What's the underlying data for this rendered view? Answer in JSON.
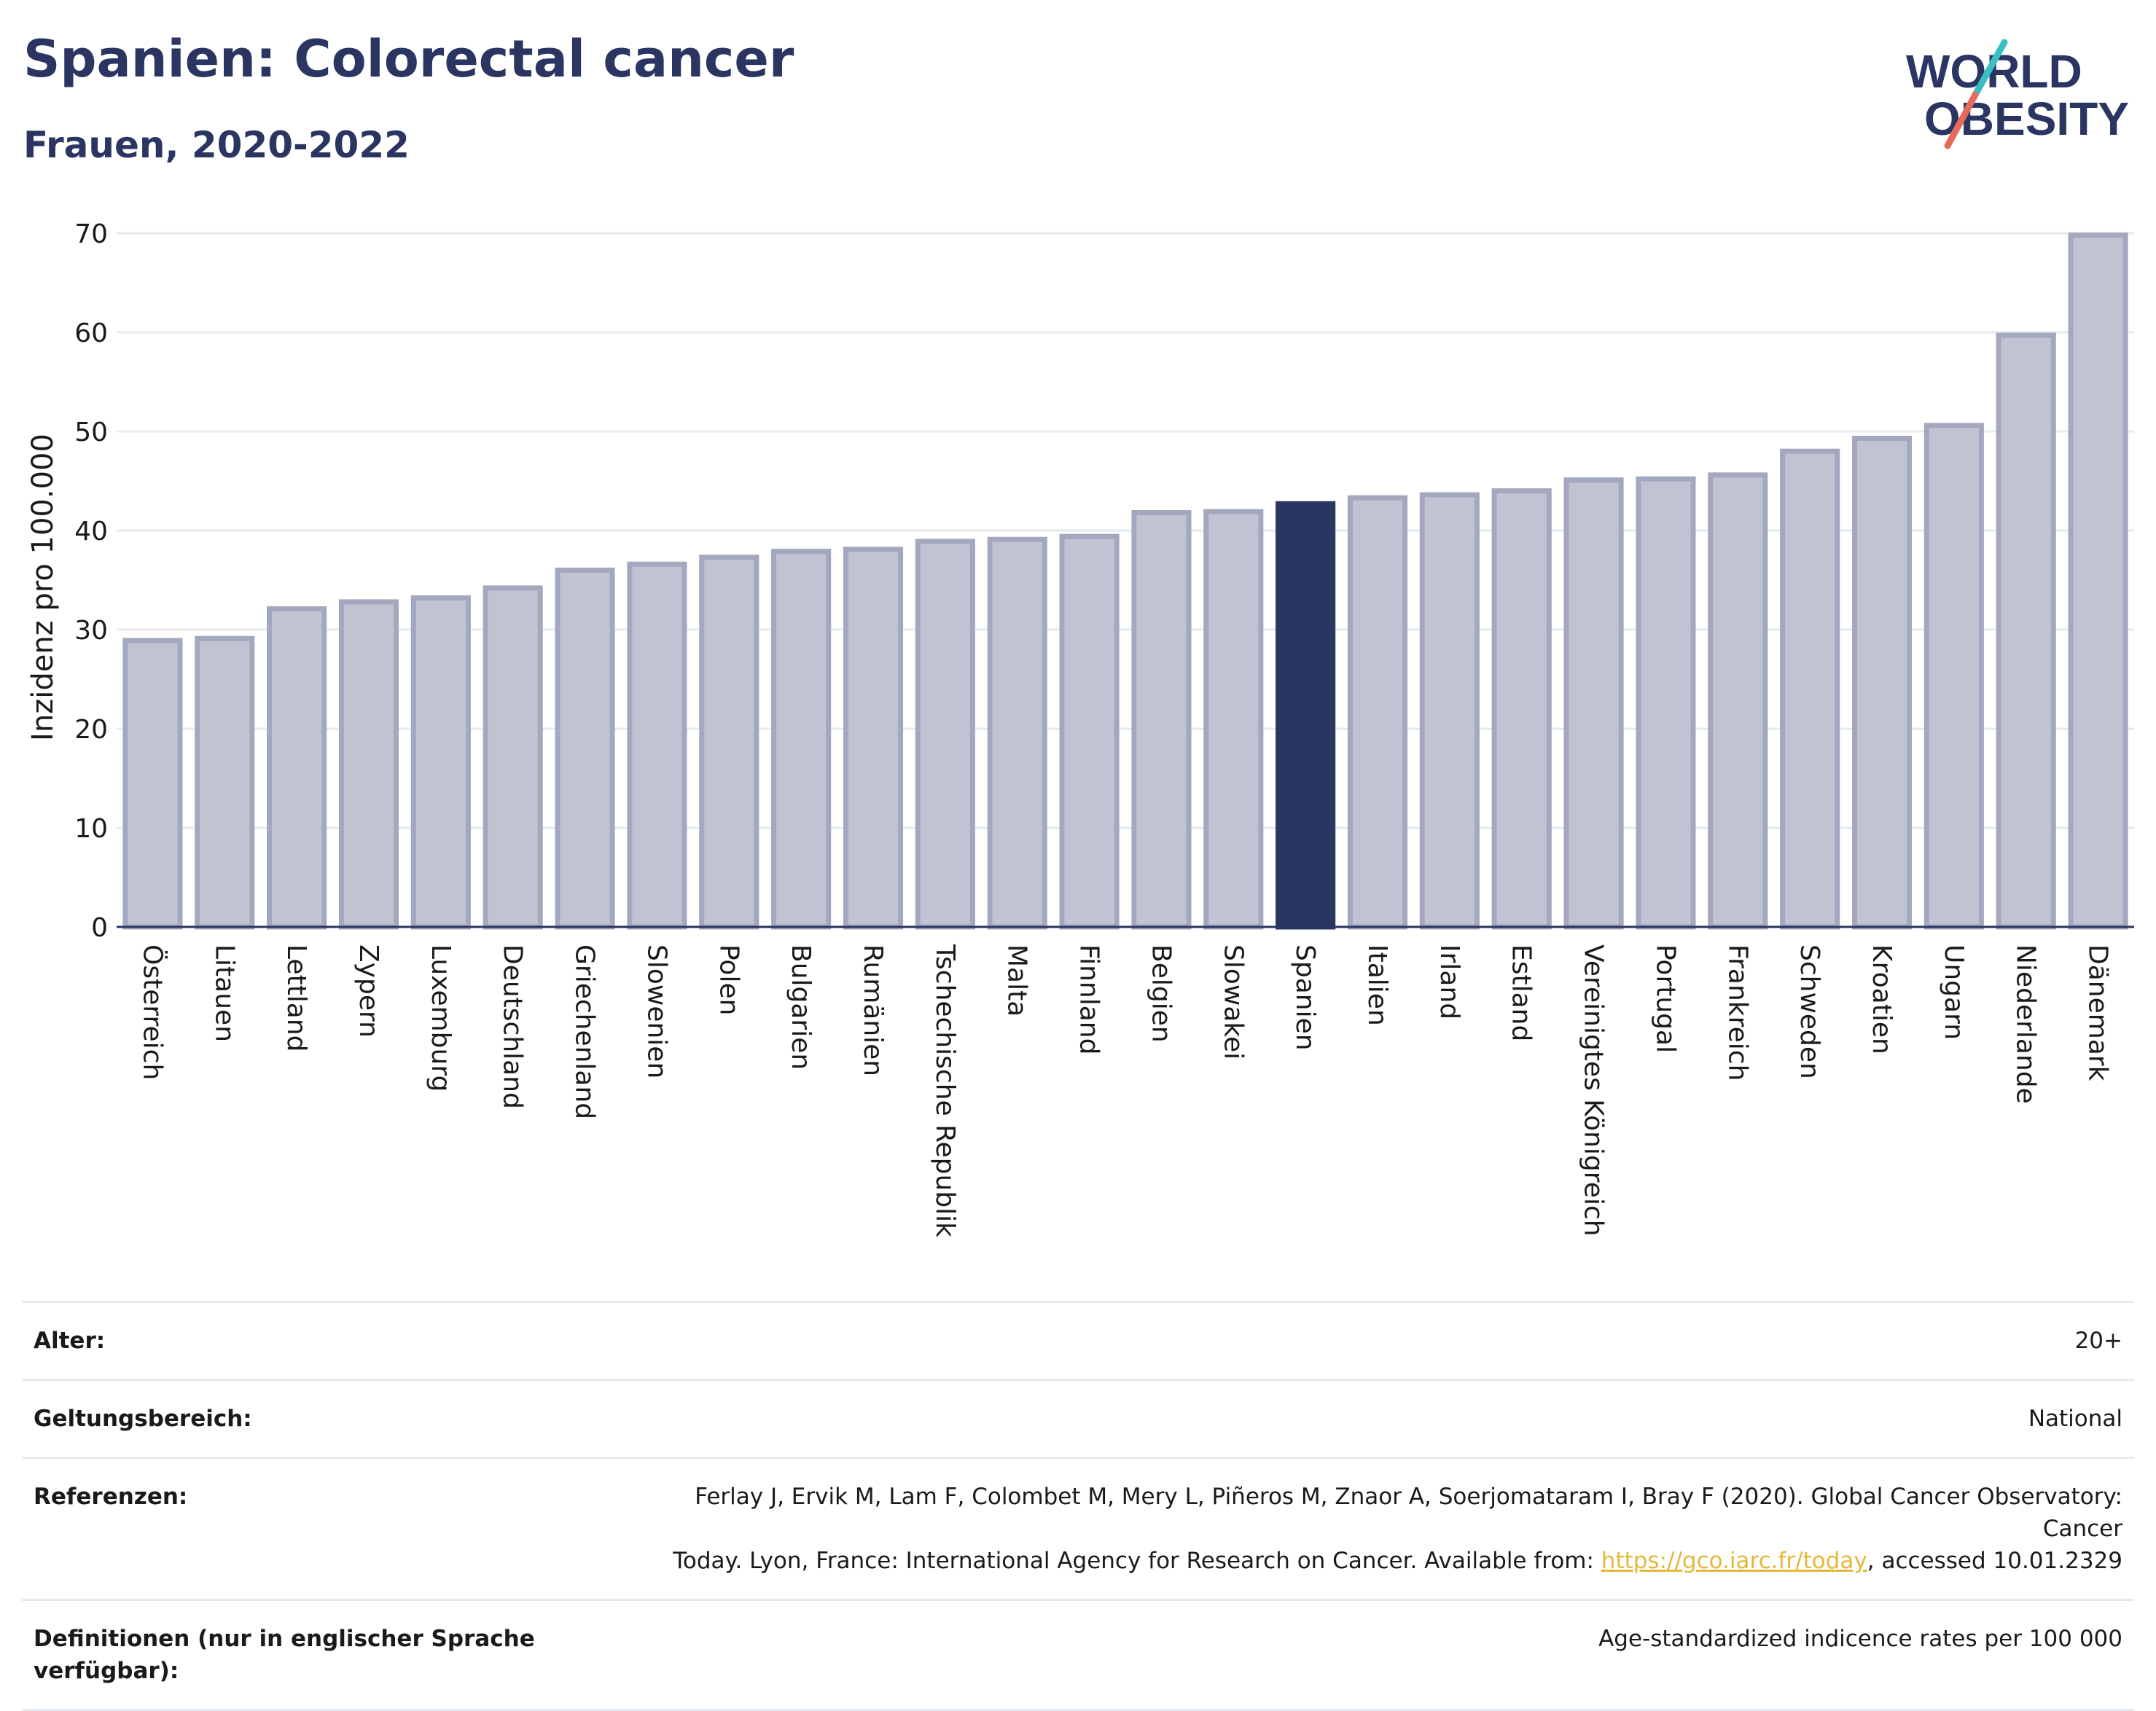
{
  "title": "Spanien: Colorectal cancer",
  "subtitle": "Frauen, 2020-2022",
  "logo": {
    "line1": "WORLD",
    "line2": "OBESITY"
  },
  "colors": {
    "highlight": "#2a3561",
    "bar": "#c0c4d2",
    "bar_border": "#a3a8be",
    "accent_teal": "#3bbfc4",
    "accent_red": "#e56b5b",
    "link": "#e5b83c"
  },
  "chart_data": {
    "type": "bar",
    "ylabel": "Inzidenz pro 100.000",
    "ylim": [
      0,
      70
    ],
    "yticks": [
      0,
      10,
      20,
      30,
      40,
      50,
      60,
      70
    ],
    "grid": true,
    "highlight": "Spanien",
    "categories": [
      "Österreich",
      "Litauen",
      "Lettland",
      "Zypern",
      "Luxemburg",
      "Deutschland",
      "Griechenland",
      "Slowenien",
      "Polen",
      "Bulgarien",
      "Rumänien",
      "Tschechische Republik",
      "Malta",
      "Finnland",
      "Belgien",
      "Slowakei",
      "Spanien",
      "Italien",
      "Irland",
      "Estland",
      "Vereinigtes Königreich",
      "Portugal",
      "Frankreich",
      "Schweden",
      "Kroatien",
      "Ungarn",
      "Niederlande",
      "Dänemark"
    ],
    "values": [
      28.9,
      29.1,
      32.1,
      32.8,
      33.2,
      34.2,
      36.0,
      36.6,
      37.3,
      37.9,
      38.1,
      38.9,
      39.1,
      39.4,
      41.8,
      41.9,
      42.7,
      43.3,
      43.6,
      44.0,
      45.1,
      45.2,
      45.6,
      48.0,
      49.3,
      50.6,
      59.7,
      69.8
    ]
  },
  "footer": {
    "age_label": "Alter:",
    "age_value": "20+",
    "scope_label": "Geltungsbereich:",
    "scope_value": "National",
    "ref_label": "Referenzen:",
    "ref_line1": "Ferlay J, Ervik M, Lam F, Colombet M, Mery L, Piñeros M, Znaor A, Soerjomataram I, Bray F (2020). Global Cancer Observatory: Cancer",
    "ref_line2_pre": "Today. Lyon, France: International Agency for Research on Cancer. Available from: ",
    "ref_link": "https://gco.iarc.fr/today",
    "ref_line2_post": ", accessed 10.01.2329",
    "def_label": "Definitionen (nur in englischer Sprache verfügbar):",
    "def_value": "Age-standardized indicence rates per 100 000"
  }
}
